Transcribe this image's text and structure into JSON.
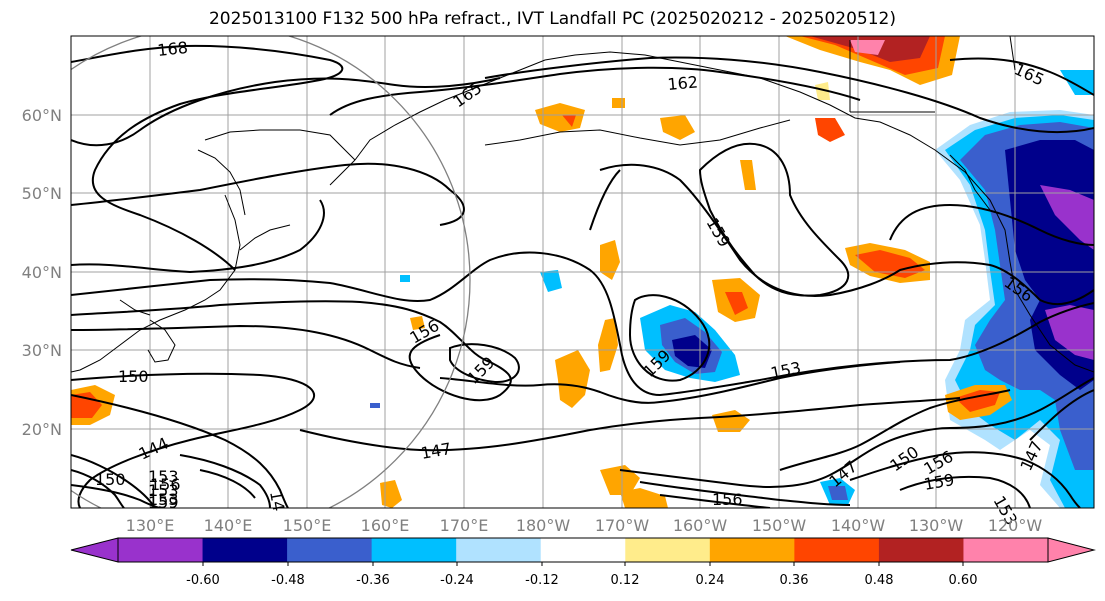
{
  "title": "2025013100 F132 500 hPa refract., IVT Landfall PC (2025020212 - 2025020512)",
  "lat_labels": [
    "60°N",
    "50°N",
    "40°N",
    "30°N",
    "20°N"
  ],
  "lon_labels": [
    "130°E",
    "140°E",
    "150°E",
    "160°E",
    "170°E",
    "180°W",
    "170°W",
    "160°W",
    "150°W",
    "140°W",
    "130°W",
    "120°W"
  ],
  "contour_labels": [
    "168",
    "165",
    "162",
    "165",
    "159",
    "156",
    "159",
    "159",
    "153",
    "156",
    "150",
    "144",
    "147",
    "147",
    "150",
    "156",
    "159",
    "153",
    "156",
    "153",
    "147",
    "153",
    "150",
    "156",
    "153",
    "159",
    "14"
  ],
  "colorbar": {
    "colors": [
      "#9932cc",
      "#00008b",
      "#3a5fcd",
      "#00bfff",
      "#b0e2ff",
      "#ffffff",
      "#ffec8b",
      "#ffa500",
      "#ff4500",
      "#b22222",
      "#ff82ab"
    ],
    "tick_labels": [
      "-0.60",
      "-0.48",
      "-0.36",
      "-0.24",
      "-0.12",
      "0.12",
      "0.24",
      "0.36",
      "0.48",
      "0.60"
    ]
  },
  "colors": {
    "grid": "#a0a0a0",
    "contour": "#000000",
    "circle": "#808080"
  }
}
